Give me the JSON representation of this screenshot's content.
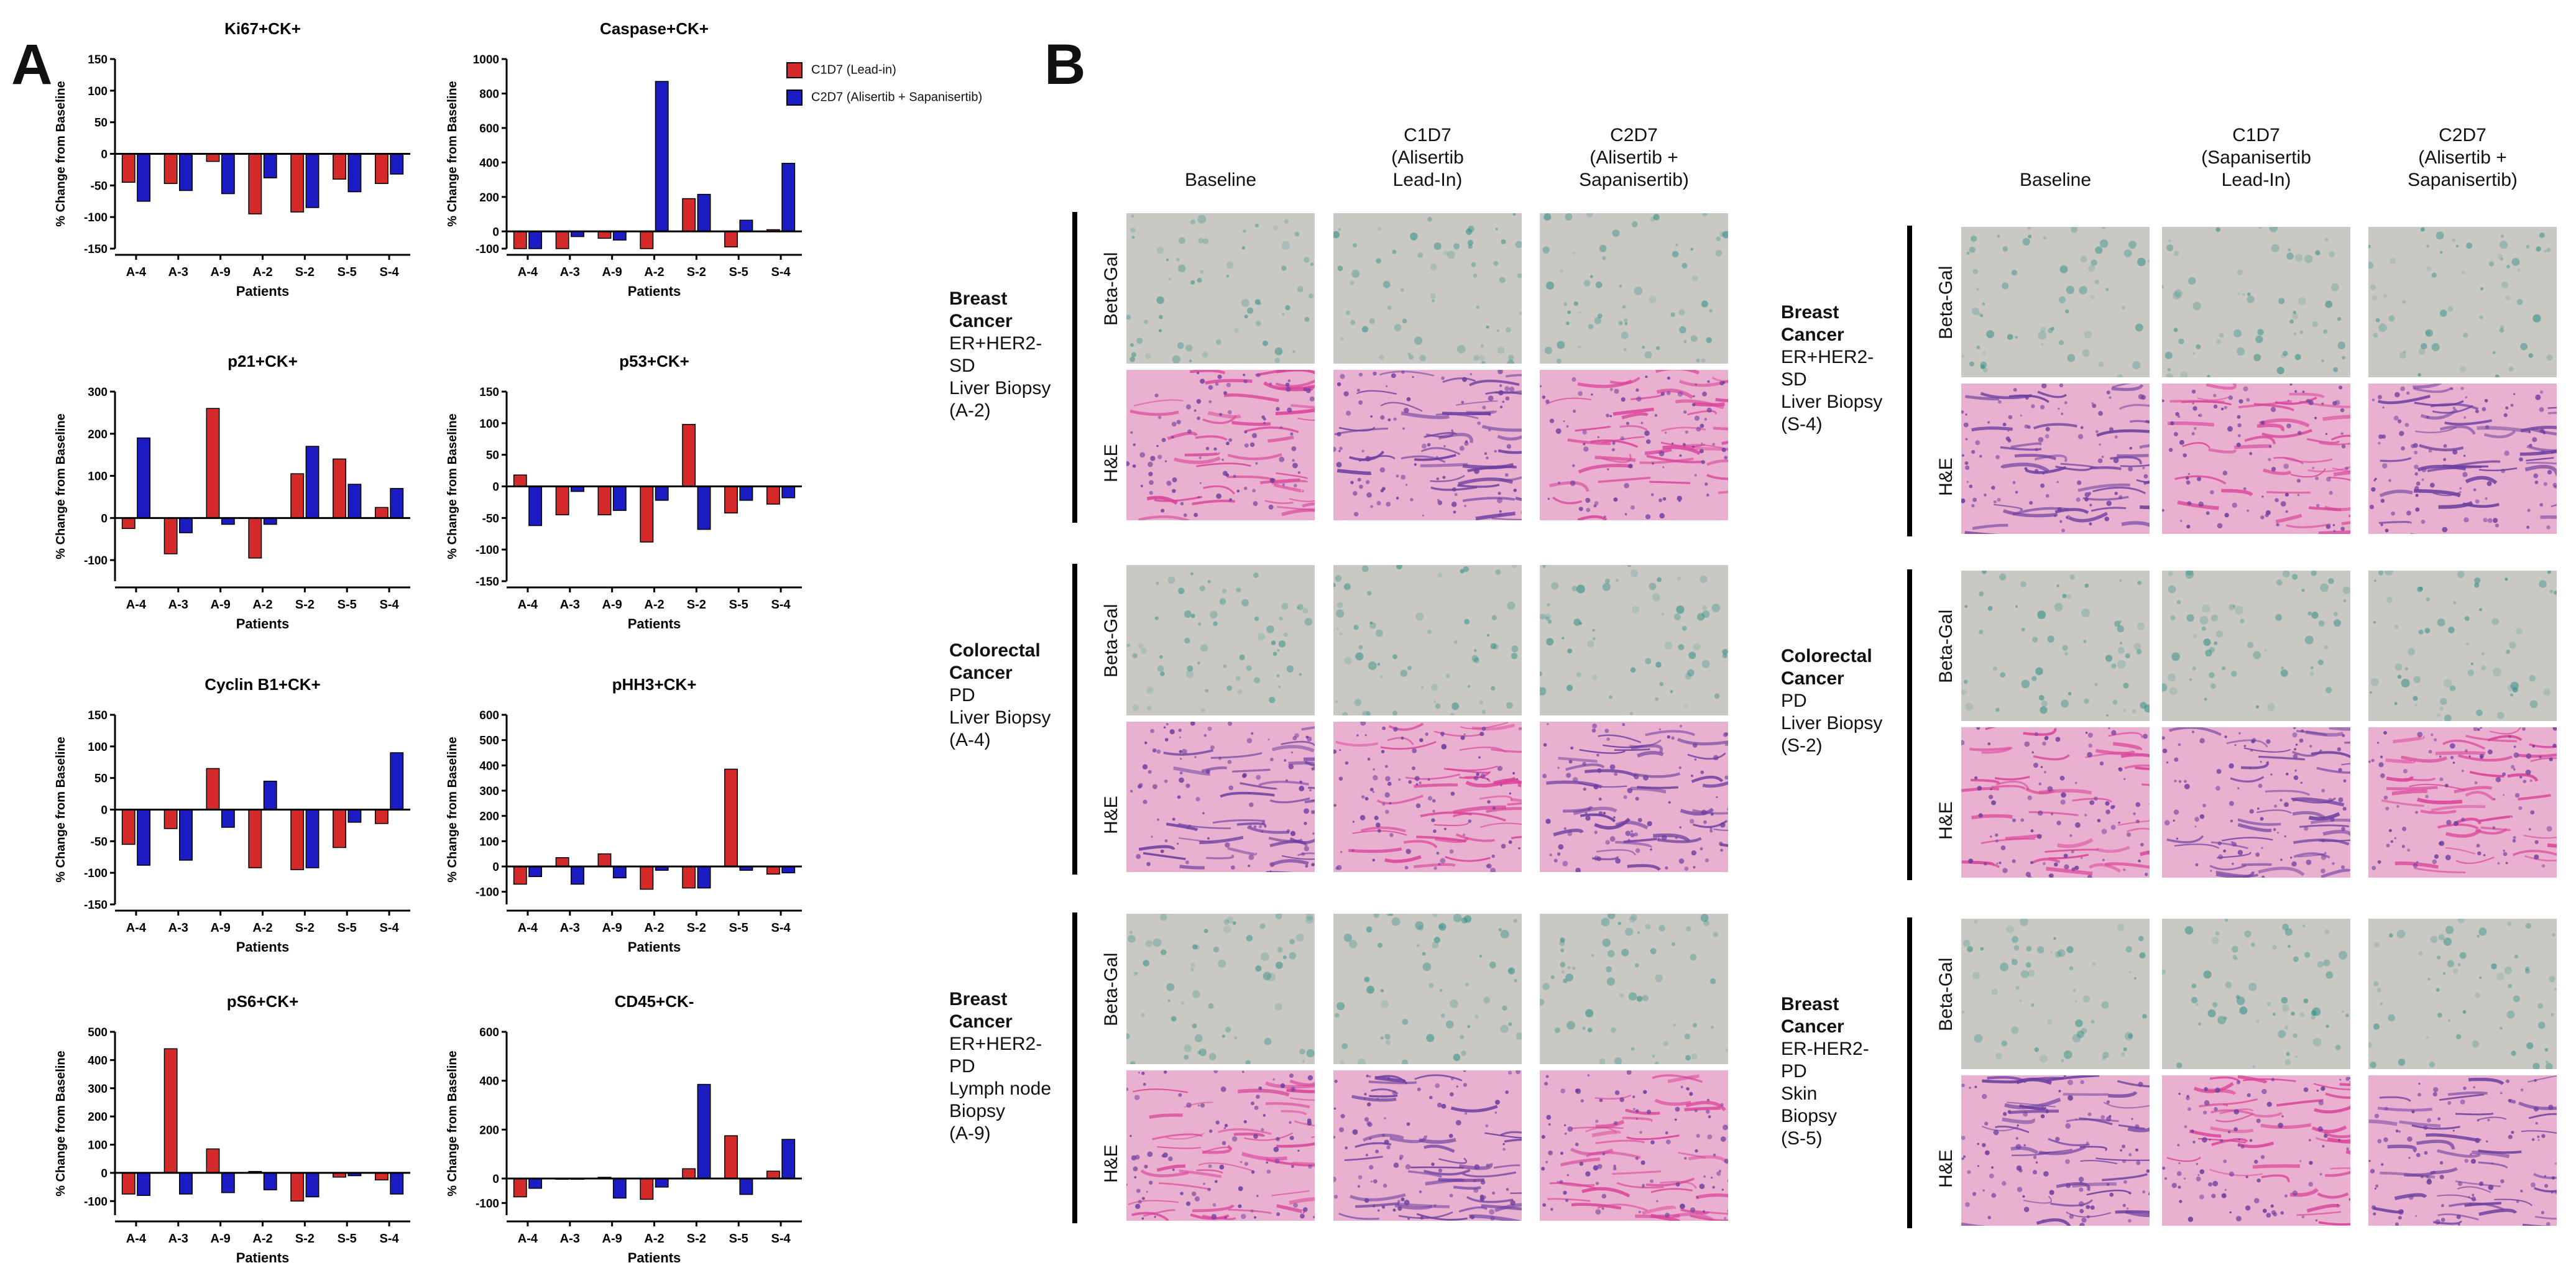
{
  "panels": {
    "a_label": "A",
    "b_label": "B"
  },
  "legend": {
    "items": [
      {
        "label": "C1D7 (Lead-in)",
        "color": "#d42a2a"
      },
      {
        "label": "C2D7 (Alisertib + Sapanisertib)",
        "color": "#1c1cc4"
      }
    ]
  },
  "colors": {
    "c1d7": "#d42a2a",
    "c2d7": "#1c1cc4",
    "axis": "#000000"
  },
  "chart_data": [
    {
      "type": "bar",
      "title": "Ki67+CK+",
      "xlabel": "Patients",
      "ylabel": "% Change from Baseline",
      "categories": [
        "A-4",
        "A-3",
        "A-9",
        "A-2",
        "S-2",
        "S-5",
        "S-4"
      ],
      "ylim": [
        -150,
        150
      ],
      "yticks": [
        -150,
        -100,
        -50,
        0,
        50,
        100,
        150
      ],
      "ytick_labels": [
        "-150",
        "-100",
        "-50",
        "0",
        "50",
        "100",
        "150"
      ],
      "series": [
        {
          "name": "C1D7 (Lead-in)",
          "values": [
            -45,
            -47,
            -12,
            -95,
            -92,
            -40,
            -47
          ]
        },
        {
          "name": "C2D7 (Alisertib + Sapanisertib)",
          "values": [
            -75,
            -58,
            -63,
            -38,
            -85,
            -60,
            -32
          ]
        }
      ]
    },
    {
      "type": "bar",
      "title": "Caspase+CK+",
      "xlabel": "Patients",
      "ylabel": "% Change from Baseline",
      "categories": [
        "A-4",
        "A-3",
        "A-9",
        "A-2",
        "S-2",
        "S-5",
        "S-4"
      ],
      "ylim": [
        -100,
        1000
      ],
      "yticks": [
        -100,
        0,
        200,
        400,
        600,
        800,
        1000
      ],
      "ytick_labels": [
        "-100",
        "0",
        "200",
        "400",
        "600",
        "800",
        "1000"
      ],
      "series": [
        {
          "name": "C1D7 (Lead-in)",
          "values": [
            -100,
            -100,
            -40,
            -100,
            190,
            -90,
            10
          ]
        },
        {
          "name": "C2D7 (Alisertib + Sapanisertib)",
          "values": [
            -100,
            -30,
            -50,
            870,
            215,
            65,
            395
          ]
        }
      ]
    },
    {
      "type": "bar",
      "title": "p21+CK+",
      "xlabel": "Patients",
      "ylabel": "% Change from Baseline",
      "categories": [
        "A-4",
        "A-3",
        "A-9",
        "A-2",
        "S-2",
        "S-5",
        "S-4"
      ],
      "ylim": [
        -150,
        300
      ],
      "yticks": [
        -100,
        0,
        100,
        200,
        300
      ],
      "ytick_labels": [
        "-100",
        "0",
        "100",
        "200",
        "300"
      ],
      "series": [
        {
          "name": "C1D7 (Lead-in)",
          "values": [
            -25,
            -85,
            260,
            -95,
            105,
            140,
            25
          ]
        },
        {
          "name": "C2D7 (Alisertib + Sapanisertib)",
          "values": [
            190,
            -35,
            -15,
            -15,
            170,
            80,
            70
          ]
        }
      ]
    },
    {
      "type": "bar",
      "title": "p53+CK+",
      "xlabel": "Patients",
      "ylabel": "% Change from Baseline",
      "categories": [
        "A-4",
        "A-3",
        "A-9",
        "A-2",
        "S-2",
        "S-5",
        "S-4"
      ],
      "ylim": [
        -150,
        150
      ],
      "yticks": [
        -150,
        -100,
        -50,
        0,
        50,
        100,
        150
      ],
      "ytick_labels": [
        "-150",
        "-100",
        "-50",
        "0",
        "50",
        "100",
        "150"
      ],
      "series": [
        {
          "name": "C1D7 (Lead-in)",
          "values": [
            18,
            -45,
            -45,
            -88,
            98,
            -42,
            -28
          ]
        },
        {
          "name": "C2D7 (Alisertib + Sapanisertib)",
          "values": [
            -62,
            -8,
            -38,
            -22,
            -68,
            -22,
            -18
          ]
        }
      ]
    },
    {
      "type": "bar",
      "title": "Cyclin B1+CK+",
      "xlabel": "Patients",
      "ylabel": "% Change from Baseline",
      "categories": [
        "A-4",
        "A-3",
        "A-9",
        "A-2",
        "S-2",
        "S-5",
        "S-4"
      ],
      "ylim": [
        -150,
        150
      ],
      "yticks": [
        -150,
        -100,
        -50,
        0,
        50,
        100,
        150
      ],
      "ytick_labels": [
        "-150",
        "-100",
        "-50",
        "0",
        "50",
        "100",
        "150"
      ],
      "series": [
        {
          "name": "C1D7 (Lead-in)",
          "values": [
            -55,
            -30,
            65,
            -92,
            -95,
            -60,
            -22
          ]
        },
        {
          "name": "C2D7 (Alisertib + Sapanisertib)",
          "values": [
            -88,
            -80,
            -28,
            45,
            -92,
            -20,
            90
          ]
        }
      ]
    },
    {
      "type": "bar",
      "title": "pHH3+CK+",
      "xlabel": "Patients",
      "ylabel": "% Change from Baseline",
      "categories": [
        "A-4",
        "A-3",
        "A-9",
        "A-2",
        "S-2",
        "S-5",
        "S-4"
      ],
      "ylim": [
        -150,
        600
      ],
      "yticks": [
        -100,
        0,
        100,
        200,
        300,
        400,
        500,
        600
      ],
      "ytick_labels": [
        "-100",
        "0",
        "100",
        "200",
        "300",
        "400",
        "500",
        "600"
      ],
      "series": [
        {
          "name": "C1D7 (Lead-in)",
          "values": [
            -70,
            35,
            50,
            -90,
            -85,
            385,
            -30
          ]
        },
        {
          "name": "C2D7 (Alisertib + Sapanisertib)",
          "values": [
            -40,
            -70,
            -45,
            -15,
            -85,
            -15,
            -25
          ]
        }
      ]
    },
    {
      "type": "bar",
      "title": "pS6+CK+",
      "xlabel": "Patients",
      "ylabel": "% Change from Baseline",
      "categories": [
        "A-4",
        "A-3",
        "A-9",
        "A-2",
        "S-2",
        "S-5",
        "S-4"
      ],
      "ylim": [
        -150,
        500
      ],
      "yticks": [
        -100,
        0,
        100,
        200,
        300,
        400,
        500
      ],
      "ytick_labels": [
        "-100",
        "0",
        "100",
        "200",
        "300",
        "400",
        "500"
      ],
      "series": [
        {
          "name": "C1D7 (Lead-in)",
          "values": [
            -75,
            440,
            85,
            5,
            -100,
            -15,
            -25
          ]
        },
        {
          "name": "C2D7 (Alisertib + Sapanisertib)",
          "values": [
            -80,
            -75,
            -70,
            -60,
            -85,
            -10,
            -75
          ]
        }
      ]
    },
    {
      "type": "bar",
      "title": "CD45+CK-",
      "xlabel": "Patients",
      "ylabel": "% Change from Baseline",
      "categories": [
        "A-4",
        "A-3",
        "A-9",
        "A-2",
        "S-2",
        "S-5",
        "S-4"
      ],
      "ylim": [
        -150,
        600
      ],
      "yticks": [
        -100,
        0,
        200,
        400,
        600
      ],
      "ytick_labels": [
        "-100",
        "0",
        "200",
        "400",
        "600"
      ],
      "series": [
        {
          "name": "C1D7 (Lead-in)",
          "values": [
            -75,
            -3,
            5,
            -85,
            40,
            175,
            30
          ]
        },
        {
          "name": "C2D7 (Alisertib + Sapanisertib)",
          "values": [
            -40,
            -3,
            -80,
            -35,
            385,
            -65,
            160
          ]
        }
      ]
    }
  ],
  "panel_b": {
    "left": {
      "columns": [
        "Baseline",
        "C1D7\n(Alisertib\nLead-In)",
        "C2D7\n(Alisertib +\nSapanisertib)"
      ],
      "groups": [
        {
          "title": "Breast\nCancer",
          "details": [
            "ER+HER2-",
            "SD",
            "Liver Biopsy",
            "(A-2)"
          ]
        },
        {
          "title": "Colorectal\nCancer",
          "details": [
            "PD",
            "Liver Biopsy",
            "(A-4)"
          ]
        },
        {
          "title": "Breast\nCancer",
          "details": [
            "ER+HER2-",
            "PD",
            "Lymph node",
            "Biopsy",
            "(A-9)"
          ]
        }
      ]
    },
    "right": {
      "columns": [
        "Baseline",
        "C1D7\n(Sapanisertib\nLead-In)",
        "C2D7\n(Alisertib +\nSapanisertib)"
      ],
      "groups": [
        {
          "title": "Breast\nCancer",
          "details": [
            "ER+HER2-",
            "SD",
            "Liver Biopsy",
            "(S-4)"
          ]
        },
        {
          "title": "Colorectal\nCancer",
          "details": [
            "PD",
            "Liver Biopsy",
            "(S-2)"
          ]
        },
        {
          "title": "Breast\nCancer",
          "details": [
            "ER-HER2-",
            "PD",
            "Skin",
            "Biopsy",
            "(S-5)"
          ]
        }
      ]
    },
    "stain_labels": {
      "beta_gal": "Beta-Gal",
      "he": "H&E"
    },
    "stain_colors": {
      "beta_gal_bg": "#c9c8c2",
      "beta_gal_stain": "#2f8f88",
      "he_bg": "#eab0cf",
      "he_stain_pink": "#d9439a",
      "he_stain_purple": "#6b3fa0"
    }
  }
}
